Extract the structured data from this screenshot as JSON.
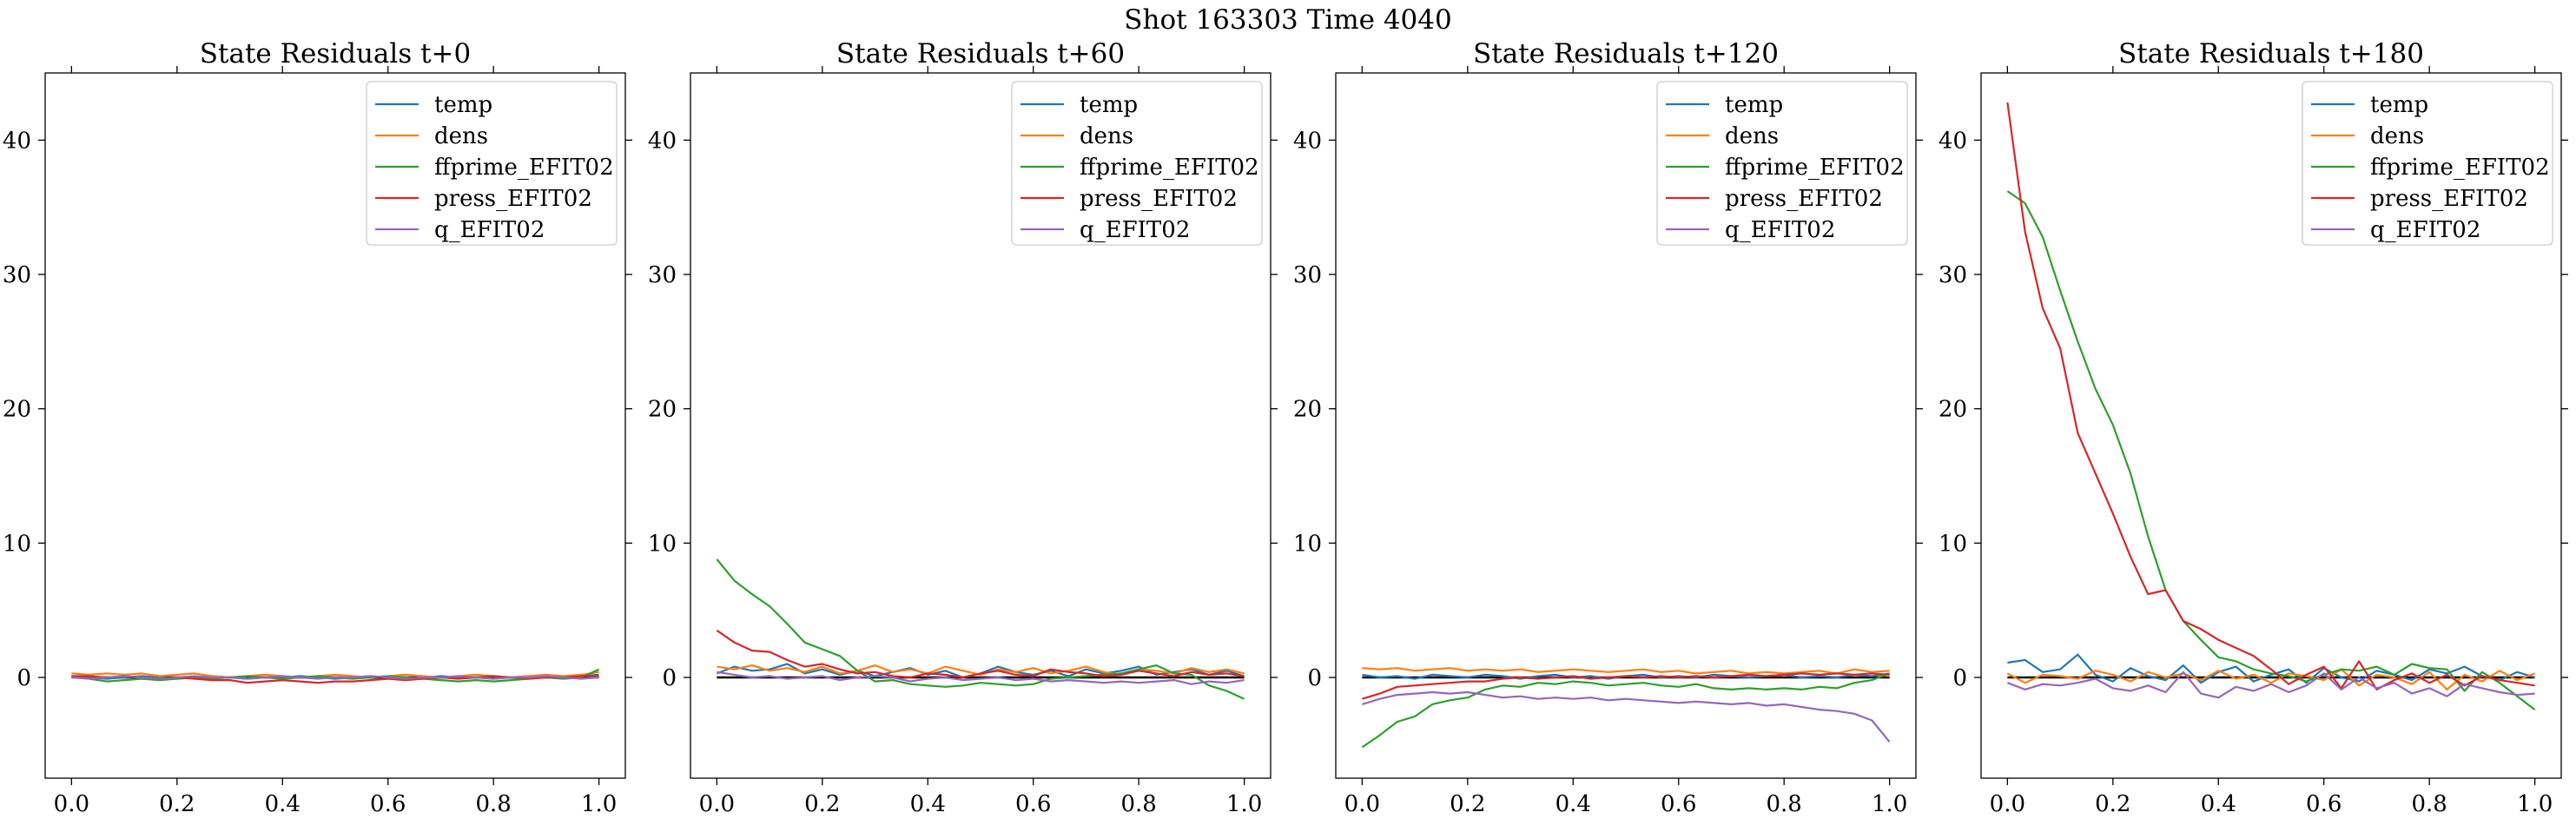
{
  "suptitle": "Shot 163303   Time 4040",
  "colors": {
    "temp": "#1f77b4",
    "dens": "#ff7f0e",
    "ffprime_EFIT02": "#2ca02c",
    "press_EFIT02": "#d62728",
    "q_EFIT02": "#9467bd",
    "zero_line": "#000000"
  },
  "chart_data": [
    {
      "type": "line",
      "title": "State Residuals t+0",
      "xlabel": "",
      "ylabel": "",
      "xlim": [
        -0.05,
        1.05
      ],
      "ylim": [
        -7.5,
        45
      ],
      "xticks": [
        "0.0",
        "0.2",
        "0.4",
        "0.6",
        "0.8",
        "1.0"
      ],
      "yticks": [
        "0",
        "10",
        "20",
        "30",
        "40"
      ],
      "grid": false,
      "legend": "upper right",
      "x": [
        0.0,
        0.0333,
        0.0667,
        0.1,
        0.1333,
        0.1667,
        0.2,
        0.2333,
        0.2667,
        0.3,
        0.3333,
        0.3667,
        0.4,
        0.4333,
        0.4667,
        0.5,
        0.5333,
        0.5667,
        0.6,
        0.6333,
        0.6667,
        0.7,
        0.7333,
        0.7667,
        0.8,
        0.8333,
        0.8667,
        0.9,
        0.9333,
        0.9667,
        1.0
      ],
      "series": [
        {
          "name": "temp",
          "values": [
            0.1,
            0.0,
            -0.1,
            0.0,
            0.1,
            0.0,
            -0.1,
            0.0,
            0.1,
            0.0,
            -0.1,
            0.0,
            0.0,
            0.1,
            0.0,
            -0.1,
            0.0,
            0.1,
            0.0,
            -0.1,
            0.0,
            0.1,
            0.0,
            0.0,
            -0.1,
            0.0,
            0.1,
            0.0,
            -0.1,
            0.1,
            0.2
          ]
        },
        {
          "name": "dens",
          "values": [
            0.3,
            0.2,
            0.3,
            0.2,
            0.3,
            0.1,
            0.2,
            0.3,
            0.1,
            0.0,
            0.1,
            0.2,
            0.1,
            0.0,
            0.1,
            0.2,
            0.1,
            0.0,
            0.1,
            0.2,
            0.1,
            0.0,
            0.1,
            0.2,
            0.1,
            0.0,
            0.1,
            0.2,
            0.1,
            0.2,
            0.4
          ]
        },
        {
          "name": "ffprime_EFIT02",
          "values": [
            0.1,
            -0.1,
            -0.3,
            -0.2,
            -0.1,
            -0.2,
            -0.1,
            0.0,
            -0.1,
            0.0,
            0.1,
            0.0,
            -0.1,
            0.0,
            0.1,
            0.0,
            -0.1,
            0.0,
            0.1,
            0.0,
            -0.1,
            -0.2,
            -0.3,
            -0.2,
            -0.3,
            -0.2,
            -0.1,
            0.0,
            -0.1,
            0.0,
            0.6
          ]
        },
        {
          "name": "press_EFIT02",
          "values": [
            0.1,
            0.1,
            0.0,
            0.1,
            0.0,
            -0.1,
            0.0,
            -0.1,
            -0.2,
            -0.2,
            -0.4,
            -0.3,
            -0.2,
            -0.3,
            -0.4,
            -0.3,
            -0.3,
            -0.2,
            -0.1,
            -0.2,
            -0.1,
            0.0,
            -0.1,
            0.0,
            0.1,
            0.0,
            -0.1,
            0.0,
            0.0,
            0.1,
            0.1
          ]
        },
        {
          "name": "q_EFIT02",
          "values": [
            0.0,
            -0.1,
            0.0,
            0.1,
            0.0,
            -0.1,
            0.0,
            0.1,
            0.0,
            0.0,
            -0.1,
            0.0,
            0.1,
            0.0,
            -0.1,
            0.0,
            0.0,
            0.1,
            0.0,
            -0.1,
            0.0,
            0.0,
            0.1,
            0.0,
            -0.1,
            0.0,
            0.0,
            0.1,
            0.0,
            -0.1,
            0.0
          ]
        }
      ]
    },
    {
      "type": "line",
      "title": "State Residuals t+60",
      "xlabel": "",
      "ylabel": "",
      "xlim": [
        -0.05,
        1.05
      ],
      "ylim": [
        -7.5,
        45
      ],
      "xticks": [
        "0.0",
        "0.2",
        "0.4",
        "0.6",
        "0.8",
        "1.0"
      ],
      "yticks": [
        "0",
        "10",
        "20",
        "30",
        "40"
      ],
      "grid": false,
      "legend": "upper right",
      "x": [
        0.0,
        0.0333,
        0.0667,
        0.1,
        0.1333,
        0.1667,
        0.2,
        0.2333,
        0.2667,
        0.3,
        0.3333,
        0.3667,
        0.4,
        0.4333,
        0.4667,
        0.5,
        0.5333,
        0.5667,
        0.6,
        0.6333,
        0.6667,
        0.7,
        0.7333,
        0.7667,
        0.8,
        0.8333,
        0.8667,
        0.9,
        0.9333,
        0.9667,
        1.0
      ],
      "series": [
        {
          "name": "temp",
          "values": [
            0.3,
            0.8,
            0.5,
            0.6,
            1.0,
            0.3,
            0.6,
            0.2,
            0.5,
            0.1,
            0.4,
            0.7,
            0.2,
            0.5,
            0.0,
            0.3,
            0.8,
            0.4,
            0.2,
            0.5,
            0.1,
            0.6,
            0.3,
            0.5,
            0.8,
            0.2,
            0.4,
            0.6,
            0.2,
            0.5,
            0.1
          ]
        },
        {
          "name": "dens",
          "values": [
            0.8,
            0.6,
            0.9,
            0.5,
            0.7,
            0.4,
            0.8,
            0.3,
            0.5,
            0.9,
            0.4,
            0.6,
            0.3,
            0.8,
            0.5,
            0.2,
            0.6,
            0.4,
            0.7,
            0.3,
            0.5,
            0.8,
            0.4,
            0.2,
            0.6,
            0.5,
            0.3,
            0.7,
            0.4,
            0.6,
            0.3
          ]
        },
        {
          "name": "ffprime_EFIT02",
          "values": [
            8.8,
            7.2,
            6.2,
            5.3,
            4.0,
            2.6,
            2.1,
            1.6,
            0.5,
            -0.3,
            -0.2,
            -0.5,
            -0.6,
            -0.7,
            -0.6,
            -0.4,
            -0.5,
            -0.6,
            -0.5,
            -0.1,
            0.0,
            0.1,
            0.2,
            0.3,
            0.6,
            0.9,
            0.3,
            0.2,
            -0.6,
            -1.0,
            -1.6
          ]
        },
        {
          "name": "press_EFIT02",
          "values": [
            3.5,
            2.6,
            2.0,
            1.9,
            1.3,
            0.8,
            1.0,
            0.6,
            0.3,
            0.4,
            0.1,
            0.0,
            0.3,
            0.2,
            0.0,
            0.3,
            0.5,
            0.2,
            0.1,
            0.6,
            0.4,
            0.3,
            0.1,
            0.2,
            0.5,
            0.3,
            0.1,
            0.4,
            0.2,
            0.3,
            0.1
          ]
        },
        {
          "name": "q_EFIT02",
          "values": [
            0.4,
            0.2,
            0.0,
            0.1,
            -0.1,
            0.0,
            0.1,
            -0.2,
            0.0,
            0.1,
            0.0,
            -0.3,
            -0.1,
            0.0,
            -0.2,
            -0.1,
            0.0,
            -0.2,
            -0.1,
            -0.3,
            -0.2,
            -0.3,
            -0.4,
            -0.3,
            -0.4,
            -0.3,
            -0.2,
            -0.5,
            -0.3,
            -0.4,
            -0.2
          ]
        }
      ]
    },
    {
      "type": "line",
      "title": "State Residuals t+120",
      "xlabel": "",
      "ylabel": "",
      "xlim": [
        -0.05,
        1.05
      ],
      "ylim": [
        -7.5,
        45
      ],
      "xticks": [
        "0.0",
        "0.2",
        "0.4",
        "0.6",
        "0.8",
        "1.0"
      ],
      "yticks": [
        "0",
        "10",
        "20",
        "30",
        "40"
      ],
      "grid": false,
      "legend": "upper right",
      "x": [
        0.0,
        0.0333,
        0.0667,
        0.1,
        0.1333,
        0.1667,
        0.2,
        0.2333,
        0.2667,
        0.3,
        0.3333,
        0.3667,
        0.4,
        0.4333,
        0.4667,
        0.5,
        0.5333,
        0.5667,
        0.6,
        0.6333,
        0.6667,
        0.7,
        0.7333,
        0.7667,
        0.8,
        0.8333,
        0.8667,
        0.9,
        0.9333,
        0.9667,
        1.0
      ],
      "series": [
        {
          "name": "temp",
          "values": [
            0.2,
            0.0,
            0.1,
            -0.1,
            0.2,
            0.1,
            0.0,
            0.2,
            0.1,
            -0.1,
            0.1,
            0.2,
            0.0,
            0.1,
            -0.1,
            0.1,
            0.2,
            0.0,
            0.1,
            0.0,
            0.2,
            0.1,
            0.0,
            0.1,
            0.2,
            0.0,
            0.1,
            0.0,
            0.2,
            0.1,
            0.3
          ]
        },
        {
          "name": "dens",
          "values": [
            0.7,
            0.6,
            0.7,
            0.5,
            0.6,
            0.7,
            0.5,
            0.6,
            0.5,
            0.6,
            0.4,
            0.5,
            0.6,
            0.5,
            0.4,
            0.5,
            0.6,
            0.4,
            0.5,
            0.3,
            0.4,
            0.5,
            0.3,
            0.4,
            0.3,
            0.4,
            0.5,
            0.3,
            0.6,
            0.4,
            0.5
          ]
        },
        {
          "name": "ffprime_EFIT02",
          "values": [
            -5.2,
            -4.3,
            -3.3,
            -2.9,
            -2.0,
            -1.7,
            -1.5,
            -0.9,
            -0.6,
            -0.7,
            -0.4,
            -0.5,
            -0.3,
            -0.4,
            -0.6,
            -0.5,
            -0.4,
            -0.6,
            -0.7,
            -0.5,
            -0.8,
            -0.9,
            -0.8,
            -0.9,
            -0.8,
            -0.9,
            -0.7,
            -0.8,
            -0.4,
            -0.2,
            0.3
          ]
        },
        {
          "name": "press_EFIT02",
          "values": [
            -1.6,
            -1.2,
            -0.7,
            -0.6,
            -0.5,
            -0.4,
            -0.3,
            -0.3,
            -0.1,
            0.0,
            -0.1,
            0.0,
            0.1,
            -0.1,
            0.0,
            0.1,
            0.0,
            0.1,
            0.0,
            0.1,
            0.0,
            0.1,
            0.2,
            0.1,
            0.2,
            0.3,
            0.2,
            0.3,
            0.2,
            0.3,
            0.2
          ]
        },
        {
          "name": "q_EFIT02",
          "values": [
            -2.0,
            -1.6,
            -1.3,
            -1.2,
            -1.1,
            -1.2,
            -1.1,
            -1.3,
            -1.5,
            -1.4,
            -1.6,
            -1.5,
            -1.6,
            -1.5,
            -1.7,
            -1.6,
            -1.7,
            -1.8,
            -1.9,
            -1.8,
            -1.9,
            -2.0,
            -1.9,
            -2.1,
            -2.0,
            -2.2,
            -2.4,
            -2.5,
            -2.7,
            -3.2,
            -4.8
          ]
        }
      ]
    },
    {
      "type": "line",
      "title": "State Residuals t+180",
      "xlabel": "",
      "ylabel": "",
      "xlim": [
        -0.05,
        1.05
      ],
      "ylim": [
        -7.5,
        45
      ],
      "xticks": [
        "0.0",
        "0.2",
        "0.4",
        "0.6",
        "0.8",
        "1.0"
      ],
      "yticks": [
        "0",
        "10",
        "20",
        "30",
        "40"
      ],
      "grid": false,
      "legend": "upper right",
      "x": [
        0.0,
        0.0333,
        0.0667,
        0.1,
        0.1333,
        0.1667,
        0.2,
        0.2333,
        0.2667,
        0.3,
        0.3333,
        0.3667,
        0.4,
        0.4333,
        0.4667,
        0.5,
        0.5333,
        0.5667,
        0.6,
        0.6333,
        0.6667,
        0.7,
        0.7333,
        0.7667,
        0.8,
        0.8333,
        0.8667,
        0.9,
        0.9333,
        0.9667,
        1.0
      ],
      "series": [
        {
          "name": "temp",
          "values": [
            1.1,
            1.3,
            0.4,
            0.6,
            1.7,
            0.2,
            -0.3,
            0.7,
            0.1,
            -0.2,
            0.9,
            -0.4,
            0.4,
            0.8,
            -0.3,
            0.2,
            0.6,
            -0.4,
            0.7,
            0.0,
            -0.3,
            0.5,
            0.2,
            -0.2,
            0.6,
            0.3,
            0.8,
            0.1,
            -0.2,
            0.4,
            0.0
          ]
        },
        {
          "name": "dens",
          "values": [
            0.3,
            -0.4,
            0.2,
            0.1,
            -0.1,
            0.5,
            0.2,
            -0.3,
            0.4,
            0.0,
            0.3,
            -0.2,
            0.5,
            -0.1,
            0.2,
            -0.4,
            0.3,
            0.1,
            -0.2,
            0.6,
            -0.6,
            0.2,
            0.0,
            -0.5,
            0.4,
            -0.9,
            0.2,
            -0.3,
            0.5,
            -0.2,
            0.3
          ]
        },
        {
          "name": "ffprime_EFIT02",
          "values": [
            36.2,
            35.3,
            32.8,
            28.8,
            25.0,
            21.5,
            18.8,
            15.2,
            10.5,
            6.5,
            4.2,
            2.8,
            1.5,
            1.2,
            0.6,
            0.3,
            0.1,
            -0.3,
            0.2,
            0.6,
            0.5,
            0.8,
            0.2,
            1.0,
            0.7,
            0.6,
            -1.0,
            0.4,
            -0.4,
            -1.4,
            -2.4
          ]
        },
        {
          "name": "press_EFIT02",
          "values": [
            42.8,
            33.2,
            27.5,
            24.5,
            18.2,
            15.2,
            12.2,
            9.0,
            6.2,
            6.5,
            4.2,
            3.6,
            2.8,
            2.2,
            1.6,
            0.6,
            -0.5,
            0.2,
            0.8,
            -0.8,
            1.2,
            -0.9,
            -0.2,
            0.3,
            -0.4,
            0.2,
            -0.6,
            0.1,
            -0.2,
            -0.4,
            -0.6
          ]
        },
        {
          "name": "q_EFIT02",
          "values": [
            -0.4,
            -0.9,
            -0.5,
            -0.6,
            -0.4,
            -0.1,
            -0.8,
            -1.0,
            -0.6,
            -1.1,
            0.4,
            -1.2,
            -1.5,
            -0.7,
            -1.0,
            -0.5,
            -1.1,
            -0.6,
            0.3,
            -0.9,
            0.0,
            -0.8,
            -0.4,
            -1.2,
            -0.8,
            -1.4,
            -0.5,
            -0.8,
            -1.1,
            -1.3,
            -1.2
          ]
        }
      ]
    }
  ]
}
